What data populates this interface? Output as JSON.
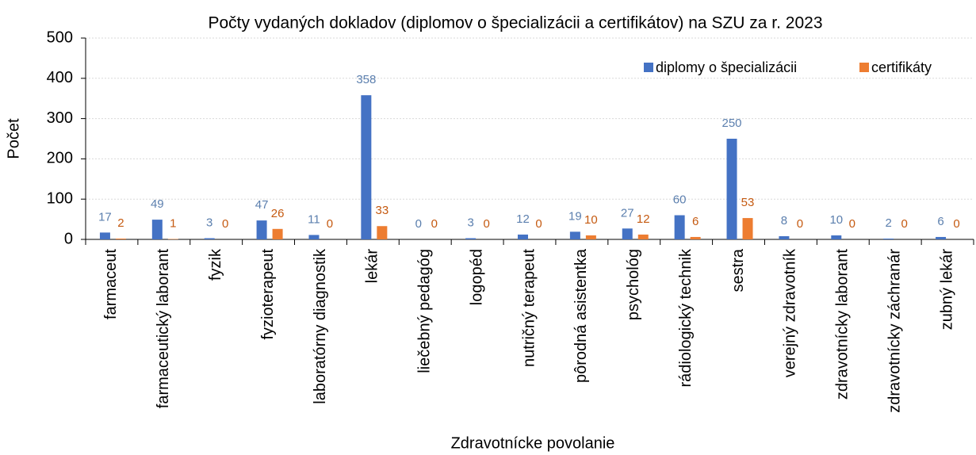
{
  "chart_data": {
    "type": "bar",
    "title": "Počty vydaných dokladov (diplomov o špecializácii a certifikátov) na SZU za r. 2023",
    "x_label": "Zdravotnícke povolanie",
    "y_label": "Počet",
    "categories": [
      "farmaceut",
      "farmaceutický laborant",
      "fyzik",
      "fyzioterapeut",
      "laboratórny diagnostik",
      "lekár",
      "liečebný pedagóg",
      "logopéd",
      "nutričný terapeut",
      "pôrodná asistentka",
      "psychológ",
      "rádiologický technik",
      "sestra",
      "verejný zdravotník",
      "zdravotnícky laborant",
      "zdravotnícky záchranár",
      "zubný lekár"
    ],
    "series": [
      {
        "name": "diplomy o špecializácii",
        "color": "#4472c4",
        "label_color": "#5b7fae",
        "values": [
          17,
          49,
          3,
          47,
          11,
          358,
          0,
          3,
          12,
          19,
          27,
          60,
          250,
          8,
          10,
          2,
          6
        ]
      },
      {
        "name": "certifikáty",
        "color": "#ed7d31",
        "label_color": "#c55a11",
        "values": [
          2,
          1,
          0,
          26,
          0,
          33,
          0,
          0,
          0,
          10,
          12,
          6,
          53,
          0,
          0,
          0,
          0
        ]
      }
    ],
    "ylim": [
      0,
      500
    ],
    "yticks": [
      0,
      100,
      200,
      300,
      400,
      500
    ],
    "grid": true,
    "legend": "top-right"
  }
}
